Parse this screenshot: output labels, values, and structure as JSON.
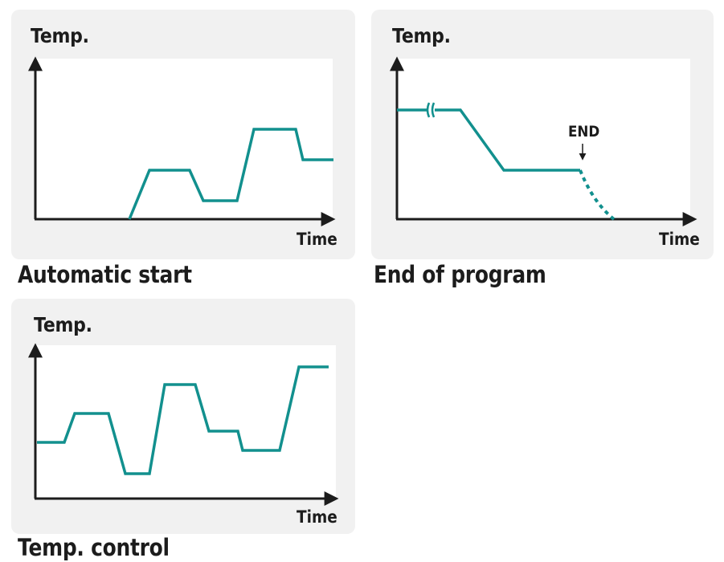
{
  "colors": {
    "curve": "#12908e",
    "axis": "#1c1c1c",
    "panel": "#f1f1f1"
  },
  "panels": {
    "auto": {
      "y_label": "Temp.",
      "x_label": "Time",
      "caption": "Automatic start"
    },
    "end": {
      "y_label": "Temp.",
      "x_label": "Time",
      "caption": "End of program",
      "end_marker": "END"
    },
    "control": {
      "y_label": "Temp.",
      "x_label": "Time",
      "caption": "Temp. control"
    }
  }
}
